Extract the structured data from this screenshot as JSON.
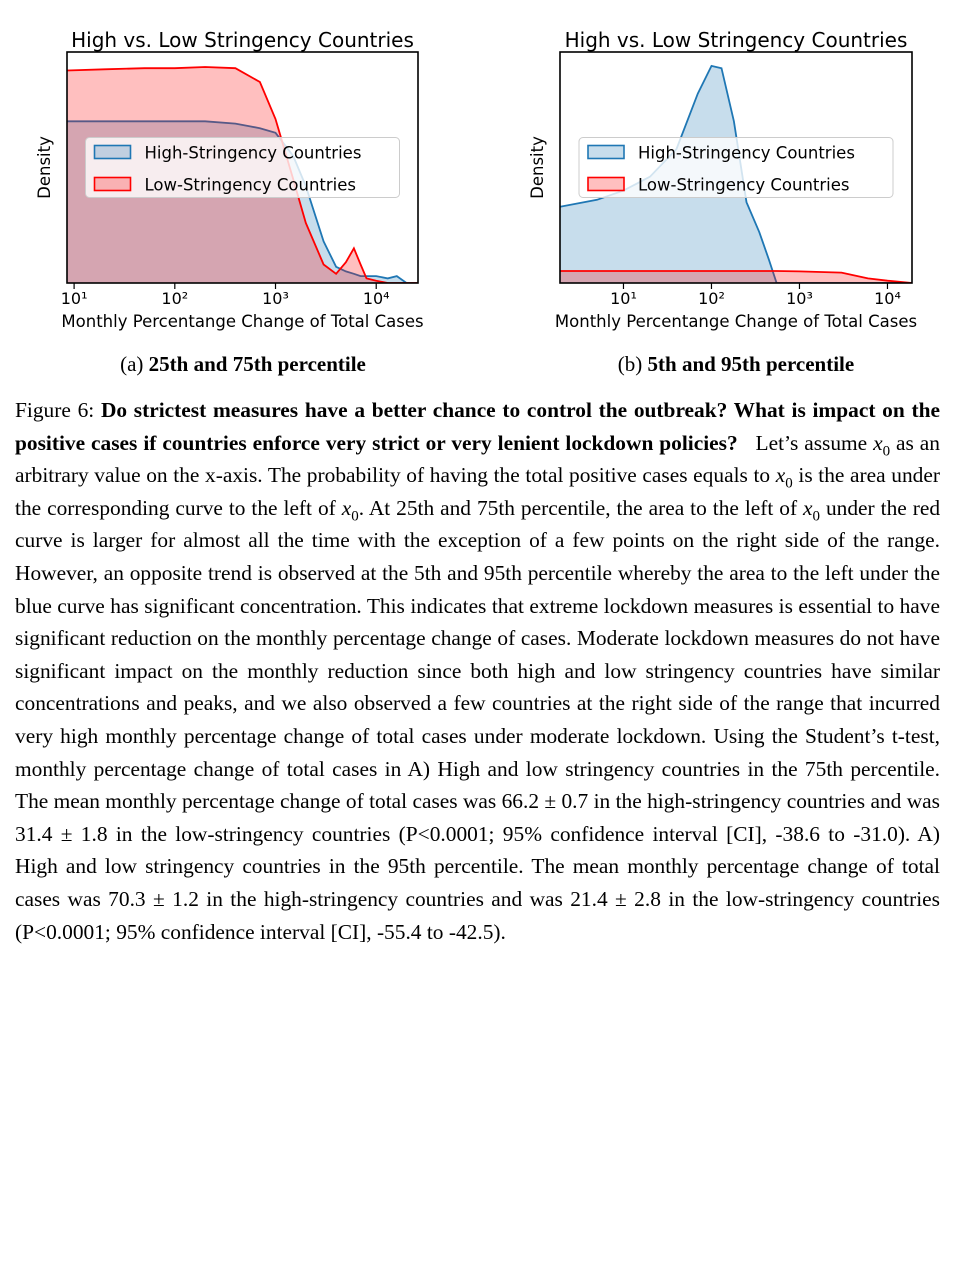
{
  "chart_data": [
    {
      "type": "density",
      "title": "High vs. Low Stringency Countries",
      "xlabel": "Monthly Percentange Change of Total Cases",
      "ylabel": "Density",
      "log_x": true,
      "xlim": [
        8.5,
        26000
      ],
      "ylim": [
        0,
        1
      ],
      "xticks": [
        {
          "value": 10,
          "label": "10¹"
        },
        {
          "value": 100,
          "label": "10²"
        },
        {
          "value": 1000,
          "label": "10³"
        },
        {
          "value": 10000,
          "label": "10⁴"
        }
      ],
      "legend": "center",
      "x": [
        8.5,
        20,
        50,
        100,
        200,
        400,
        700,
        1000,
        1500,
        2000,
        3000,
        4000,
        5000,
        6000,
        7000,
        8000,
        10000,
        13000,
        16000,
        20000,
        26000
      ],
      "series": [
        {
          "name": "High-Stringency Countries",
          "color": "#1f77b4",
          "values": [
            0.7,
            0.7,
            0.7,
            0.7,
            0.7,
            0.69,
            0.67,
            0.65,
            0.55,
            0.42,
            0.18,
            0.07,
            0.05,
            0.04,
            0.03,
            0.03,
            0.03,
            0.02,
            0.03,
            0.0,
            0.0
          ]
        },
        {
          "name": "Low-Stringency Countries",
          "color": "#ff0000",
          "values": [
            0.92,
            0.925,
            0.93,
            0.93,
            0.935,
            0.93,
            0.87,
            0.71,
            0.45,
            0.26,
            0.08,
            0.04,
            0.09,
            0.15,
            0.08,
            0.02,
            0.01,
            0.0,
            0.0,
            0.0,
            0.0
          ]
        }
      ]
    },
    {
      "type": "density",
      "title": "High vs. Low Stringency Countries",
      "xlabel": "Monthly Percentange Change of Total Cases",
      "ylabel": "Density",
      "log_x": true,
      "xlim": [
        1.9,
        19000
      ],
      "ylim": [
        0,
        1
      ],
      "xticks": [
        {
          "value": 10,
          "label": "10¹"
        },
        {
          "value": 100,
          "label": "10²"
        },
        {
          "value": 1000,
          "label": "10³"
        },
        {
          "value": 10000,
          "label": "10⁴"
        }
      ],
      "legend": "center",
      "x": [
        1.9,
        5,
        10,
        20,
        40,
        70,
        100,
        130,
        180,
        250,
        350,
        450,
        550,
        1000,
        3000,
        6000,
        10000,
        19000
      ],
      "series": [
        {
          "name": "High-Stringency Countries",
          "color": "#1f77b4",
          "values": [
            0.33,
            0.36,
            0.4,
            0.46,
            0.58,
            0.82,
            0.94,
            0.93,
            0.7,
            0.35,
            0.22,
            0.1,
            0.0,
            0.0,
            0.0,
            0.0,
            0.0,
            0.0
          ]
        },
        {
          "name": "Low-Stringency Countries",
          "color": "#ff0000",
          "values": [
            0.052,
            0.052,
            0.052,
            0.052,
            0.052,
            0.052,
            0.052,
            0.052,
            0.052,
            0.052,
            0.052,
            0.052,
            0.052,
            0.05,
            0.045,
            0.02,
            0.01,
            0.0
          ]
        }
      ]
    }
  ],
  "subcaptions": [
    {
      "label": "(a)",
      "text": "25th and 75th percentile"
    },
    {
      "label": "(b)",
      "text": "5th and 95th percentile"
    }
  ],
  "caption": [
    {
      "style": "plain",
      "text": "Figure 6: "
    },
    {
      "style": "bold",
      "text": "Do strictest measures have a better chance to control the outbreak? What is impact on the positive cases if countries enforce very strict or very lenient lockdown policies?"
    },
    {
      "style": "plain",
      "text": "   Let’s assume "
    },
    {
      "style": "math",
      "text": "x",
      "sub": "0"
    },
    {
      "style": "plain",
      "text": " as an arbitrary value on the x-axis. The probability of having the total positive cases equals to "
    },
    {
      "style": "math",
      "text": "x",
      "sub": "0"
    },
    {
      "style": "plain",
      "text": " is the area under the corresponding curve to the left of "
    },
    {
      "style": "math",
      "text": "x",
      "sub": "0"
    },
    {
      "style": "plain",
      "text": ". At 25th and 75th percentile, the area to the left of "
    },
    {
      "style": "math",
      "text": "x",
      "sub": "0"
    },
    {
      "style": "plain",
      "text": " under the red curve is larger for almost all the time with the exception of a few points on the right side of the range. However, an opposite trend is observed at the 5th and 95th percentile whereby the area to the left under the blue curve has significant concentration. This indicates that extreme lockdown measures is essential to have significant reduction on the monthly percentage change of cases. Moderate lockdown measures do not have significant impact on the monthly reduction since both high and low stringency countries have similar concentrations and peaks, and we also observed a few countries at the right side of the range that incurred very high monthly percentage change of total cases under moderate lockdown. Using the Student’s t-test, monthly percentage change of total cases in A) High and low stringency countries in the 75th percentile. The mean monthly percentage change of total cases was 66.2 ± 0.7 in the high-stringency countries and was 31.4 ± 1.8 in the low-stringency countries (P<0.0001; 95% confidence interval [CI], -38.6 to -31.0). A) High and low stringency countries in the 95th percentile. The mean monthly percentage change of total cases was 70.3 ± 1.2 in the high-stringency countries and was 21.4 ± 2.8 in the low-stringency countries (P<0.0001; 95% confidence interval [CI], -55.4 to -42.5)."
    }
  ]
}
